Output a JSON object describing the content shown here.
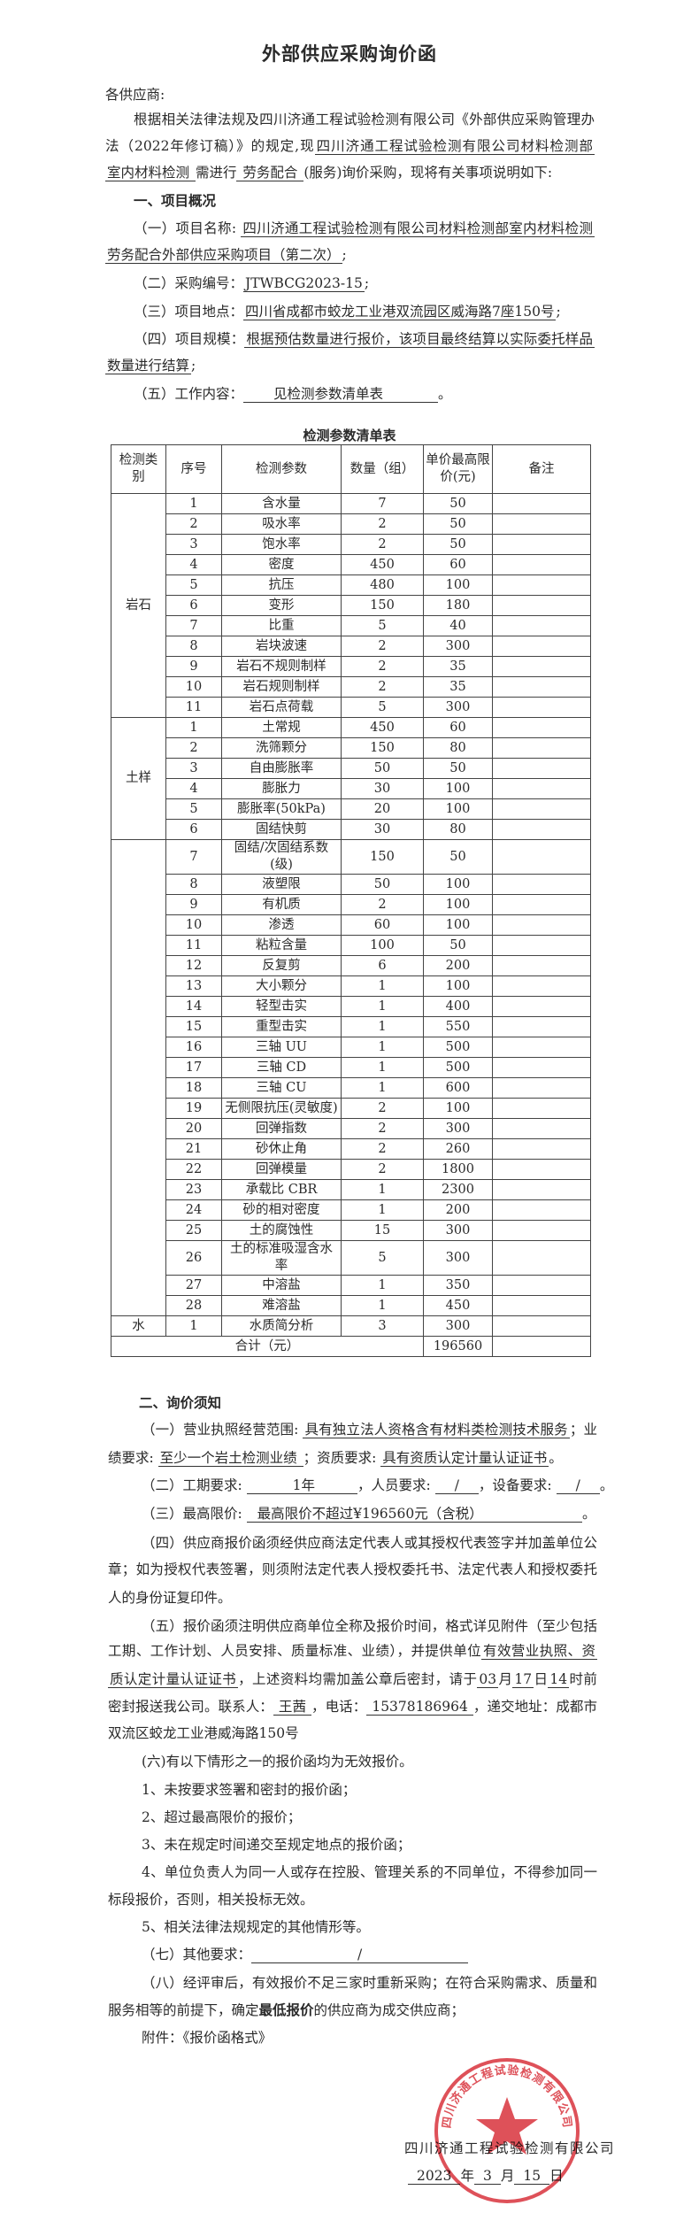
{
  "title": "外部供应采购询价函",
  "greeting": [
    "各供应商:"
  ],
  "intro": [
    [
      "根据相关法律法规及四川济通工程试验检测有限公司《外部供应采购管理办"
    ],
    [
      "法（2022年修订稿）》的规定,现",
      {
        "f": "四川济通工程试验检测有限公司材料检测部"
      }
    ],
    [
      {
        "f": "室内材料检测 "
      },
      "需进行",
      {
        "f": " 劳务配合 "
      },
      "(服务)询价采购，现将有关事项说明如下:"
    ]
  ],
  "section1": {
    "heading": [
      {
        "b": "一、项目概况"
      }
    ],
    "lines": [
      [
        "（一）项目名称: ",
        {
          "f": "四川济通工程试验检测有限公司材料检测部室内材料检测"
        }
      ],
      [
        {
          "f": "劳务配合外部供应采购项目（第二次）"
        },
        ";"
      ],
      [
        "（二）采购编号：",
        {
          "f": "JTWBCG2023-15"
        },
        ";"
      ],
      [
        "（三）项目地点：",
        {
          "f": "四川省成都市蛟龙工业港双流园区威海路7座150号"
        },
        ";"
      ],
      [
        "（四）项目规模：",
        {
          "f": "根据预估数量进行报价，该项目最终结算以实际委托样品"
        }
      ],
      [
        {
          "f": "数量进行结算"
        },
        ";"
      ],
      [
        "（五）工作内容：",
        {
          "f": "见检测参数清单表"
        },
        "。"
      ]
    ]
  },
  "table": {
    "title": "检测参数清单表",
    "headers": [
      "检测类别",
      "序号",
      "检测参数",
      "数量（组）",
      "单价最高限价(元)",
      "备注"
    ],
    "groups": [
      {
        "category": "岩石",
        "items": [
          [
            "1",
            "含水量",
            "7",
            "50"
          ],
          [
            "2",
            "吸水率",
            "2",
            "50"
          ],
          [
            "3",
            "饱水率",
            "2",
            "50"
          ],
          [
            "4",
            "密度",
            "450",
            "60"
          ],
          [
            "5",
            "抗压",
            "480",
            "100"
          ],
          [
            "6",
            "变形",
            "150",
            "180"
          ],
          [
            "7",
            "比重",
            "5",
            "40"
          ],
          [
            "8",
            "岩块波速",
            "2",
            "300"
          ],
          [
            "9",
            "岩石不规则制样",
            "2",
            "35"
          ],
          [
            "10",
            "岩石规则制样",
            "2",
            "35"
          ],
          [
            "11",
            "岩石点荷载",
            "5",
            "300"
          ]
        ]
      },
      {
        "category": "土样",
        "items": [
          [
            "1",
            "土常规",
            "450",
            "60"
          ],
          [
            "2",
            "洗筛颗分",
            "150",
            "80"
          ],
          [
            "3",
            "自由膨胀率",
            "50",
            "50"
          ],
          [
            "4",
            "膨胀力",
            "30",
            "100"
          ],
          [
            "5",
            "膨胀率(50kPa)",
            "20",
            "100"
          ],
          [
            "6",
            "固结快剪",
            "30",
            "80"
          ]
        ]
      },
      {
        "category": "",
        "items": [
          [
            "7",
            "固结/次固结系数(级)",
            "150",
            "50"
          ],
          [
            "8",
            "液塑限",
            "50",
            "100"
          ],
          [
            "9",
            "有机质",
            "2",
            "100"
          ],
          [
            "10",
            "渗透",
            "60",
            "100"
          ],
          [
            "11",
            "粘粒含量",
            "100",
            "50"
          ],
          [
            "12",
            "反复剪",
            "6",
            "200"
          ],
          [
            "13",
            "大小颗分",
            "1",
            "100"
          ],
          [
            "14",
            "轻型击实",
            "1",
            "400"
          ],
          [
            "15",
            "重型击实",
            "1",
            "550"
          ],
          [
            "16",
            "三轴 UU",
            "1",
            "500"
          ],
          [
            "17",
            "三轴 CD",
            "1",
            "500"
          ],
          [
            "18",
            "三轴 CU",
            "1",
            "600"
          ],
          [
            "19",
            "无侧限抗压(灵敏度)",
            "2",
            "100"
          ],
          [
            "20",
            "回弹指数",
            "2",
            "300"
          ],
          [
            "21",
            "砂休止角",
            "2",
            "260"
          ],
          [
            "22",
            "回弹模量",
            "2",
            "1800"
          ],
          [
            "23",
            "承载比 CBR",
            "1",
            "2300"
          ],
          [
            "24",
            "砂的相对密度",
            "1",
            "200"
          ],
          [
            "25",
            "土的腐蚀性",
            "15",
            "300"
          ],
          [
            "26",
            "土的标准吸湿含水率",
            "5",
            "300"
          ],
          [
            "27",
            "中溶盐",
            "1",
            "350"
          ],
          [
            "28",
            "难溶盐",
            "1",
            "450"
          ]
        ]
      },
      {
        "category": "水",
        "items": [
          [
            "1",
            "水质简分析",
            "3",
            "300"
          ]
        ]
      }
    ],
    "total": {
      "label": "合计（元）",
      "value": "196560"
    }
  },
  "section2": {
    "heading": [
      {
        "b": "二、询价须知"
      }
    ],
    "lines": [
      [
        "（一）营业执照经营范围: ",
        {
          "f": "具有独立法人资格含有材料类检测技术服务"
        },
        "；业"
      ],
      [
        "绩要求: ",
        {
          "f": "至少一个岩土检测业绩 "
        },
        "；资质要求: ",
        {
          "f": "具有资质认定计量认证证书"
        },
        "。"
      ],
      [
        "（二）工期要求: ",
        {
          "f": "1年"
        },
        "，人员要求: ",
        {
          "f": "/"
        },
        "，设备要求: ",
        {
          "f": "/"
        },
        "。"
      ],
      [
        "（三）最高限价: ",
        {
          "f": "最高限价不超过¥196560元（含税）"
        },
        "。"
      ],
      [
        "（四）供应商报价函须经供应商法定代表人或其授权代表签字并加盖单位公"
      ],
      [
        "章；如为授权代表签署，则须附法定代表人授权委托书、法定代表人和授权委托"
      ],
      [
        "人的身份证复印件。"
      ],
      [
        "（五）报价函须注明供应商单位全称及报价时间，格式详见附件（至少包括"
      ],
      [
        "工期、工作计划、人员安排、质量标准、业绩），并提供单位",
        {
          "f": "有效营业执照、资"
        }
      ],
      [
        {
          "f": "质认定计量认证证书"
        },
        "，上述资料均需加盖公章后密封，请于",
        {
          "f": "03"
        },
        "月",
        {
          "f": "17"
        },
        "日",
        {
          "f": "14"
        },
        "时前"
      ],
      [
        "密封报送我公司。联系人：",
        {
          "f": "王茜"
        },
        "，电话：",
        {
          "f": "15378186964"
        },
        "，递交地址：成都市"
      ],
      [
        "双流区蛟龙工业港威海路150号"
      ],
      [
        "(六)有以下情形之一的报价函均为无效报价。"
      ],
      [
        "1、未按要求签署和密封的报价函；"
      ],
      [
        "2、超过最高限价的报价；"
      ],
      [
        "3、未在规定时间递交至规定地点的报价函；"
      ],
      [
        "4、单位负责人为同一人或存在控股、管理关系的不同单位，不得参加同一"
      ],
      [
        "标段报价，否则，相关投标无效。"
      ],
      [
        "5、相关法律法规规定的其他情形等。"
      ],
      [
        "（七）其他要求：",
        {
          "f": "/"
        }
      ],
      [
        "（八）经评审后，有效报价不足三家时重新采购；在符合采购需求、质量和"
      ],
      [
        "服务相等的前提下，确定",
        {
          "b": "最低报价"
        },
        "的供应商为成交供应商；"
      ],
      [
        "附件：《报价函格式》"
      ]
    ]
  },
  "signature": {
    "company": [
      "四川济通工程试验检测有限公司"
    ],
    "date": [
      {
        "f": "2023"
      },
      "年",
      {
        "f": "3"
      },
      "月",
      {
        "f": "15"
      },
      "日"
    ]
  },
  "stamp": {
    "text": "四川济通工程试验检测有限公司",
    "code": "5101225043723",
    "color": "#d8323c"
  }
}
